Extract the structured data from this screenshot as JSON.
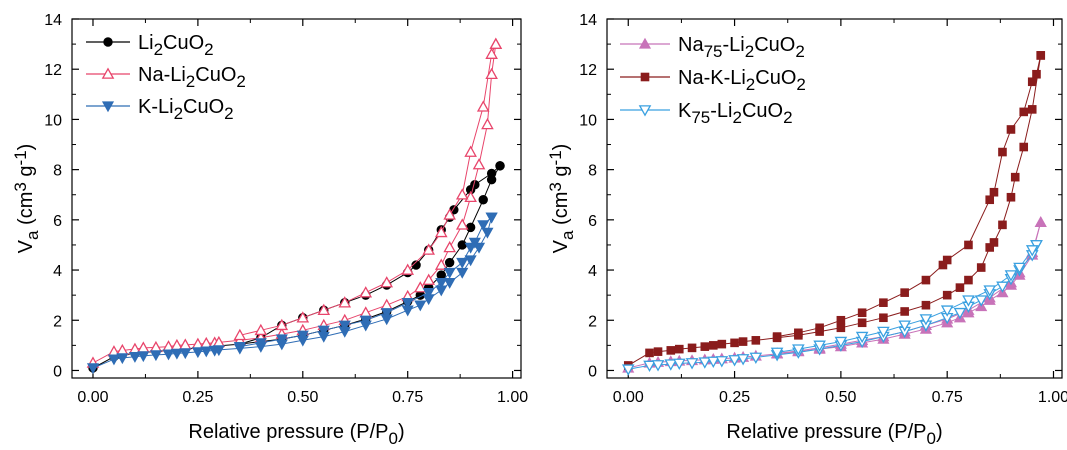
{
  "chart_data": [
    {
      "type": "line",
      "xlabel": "Relative pressure (P/P0)",
      "ylabel": "Va (cm3 g-1)",
      "xlim": [
        -0.05,
        1.02
      ],
      "ylim": [
        -0.3,
        14
      ],
      "xticks": [
        0.0,
        0.25,
        0.5,
        0.75,
        1.0
      ],
      "xtick_labels": [
        "0.00",
        "0.25",
        "0.50",
        "0.75",
        "1.00"
      ],
      "yticks": [
        0,
        2,
        4,
        6,
        8,
        10,
        12,
        14
      ],
      "ytick_labels": [
        "0",
        "2",
        "4",
        "6",
        "8",
        "10",
        "12",
        "14"
      ],
      "grid": false,
      "legend_position": "top-left",
      "series": [
        {
          "name": "Li2CuO2",
          "color": "#000000",
          "marker": "circle",
          "filled": true,
          "adsorption": {
            "x": [
              0.0,
              0.05,
              0.07,
              0.1,
              0.12,
              0.15,
              0.18,
              0.2,
              0.22,
              0.25,
              0.27,
              0.29,
              0.3,
              0.35,
              0.4,
              0.45,
              0.5,
              0.55,
              0.6,
              0.65,
              0.7,
              0.75,
              0.78,
              0.8,
              0.83,
              0.85,
              0.88,
              0.9,
              0.93,
              0.95,
              0.97
            ],
            "y": [
              0.1,
              0.55,
              0.62,
              0.68,
              0.72,
              0.75,
              0.8,
              0.82,
              0.86,
              0.9,
              0.93,
              0.96,
              0.98,
              1.05,
              1.15,
              1.25,
              1.4,
              1.6,
              1.8,
              2.05,
              2.35,
              2.75,
              3.0,
              3.3,
              3.8,
              4.3,
              5.0,
              5.7,
              6.8,
              7.6,
              8.15
            ]
          },
          "desorption": {
            "x": [
              0.97,
              0.95,
              0.91,
              0.9,
              0.86,
              0.85,
              0.83,
              0.8,
              0.77,
              0.75,
              0.7,
              0.65,
              0.6,
              0.55,
              0.5,
              0.45,
              0.4,
              0.35
            ],
            "y": [
              8.15,
              7.85,
              7.4,
              7.2,
              6.4,
              6.1,
              5.6,
              4.8,
              4.2,
              3.9,
              3.4,
              3.0,
              2.7,
              2.4,
              2.1,
              1.8,
              1.3,
              1.05
            ]
          }
        },
        {
          "name": "Na-Li2CuO2",
          "color": "#e8456b",
          "marker": "triangle-up",
          "filled": false,
          "adsorption": {
            "x": [
              0.0,
              0.05,
              0.07,
              0.1,
              0.12,
              0.15,
              0.18,
              0.2,
              0.22,
              0.25,
              0.27,
              0.29,
              0.3,
              0.35,
              0.4,
              0.45,
              0.5,
              0.55,
              0.6,
              0.65,
              0.7,
              0.75,
              0.78,
              0.8,
              0.83,
              0.85,
              0.88,
              0.9,
              0.92,
              0.94,
              0.95,
              0.96
            ],
            "y": [
              0.3,
              0.75,
              0.8,
              0.85,
              0.9,
              0.92,
              0.95,
              1.0,
              1.02,
              1.05,
              1.08,
              1.1,
              1.12,
              1.2,
              1.3,
              1.45,
              1.6,
              1.8,
              2.0,
              2.3,
              2.6,
              2.95,
              3.3,
              3.6,
              4.2,
              4.9,
              5.8,
              6.9,
              8.2,
              9.8,
              11.8,
              13.0
            ]
          },
          "desorption": {
            "x": [
              0.96,
              0.95,
              0.93,
              0.9,
              0.88,
              0.85,
              0.83,
              0.8,
              0.75,
              0.7,
              0.65,
              0.6,
              0.55,
              0.5,
              0.45,
              0.4,
              0.35
            ],
            "y": [
              13.0,
              12.6,
              10.5,
              8.7,
              7.0,
              6.2,
              5.5,
              4.8,
              4.0,
              3.5,
              3.1,
              2.7,
              2.4,
              2.1,
              1.8,
              1.6,
              1.4
            ]
          }
        },
        {
          "name": "K-Li2CuO2",
          "color": "#2f6db5",
          "marker": "triangle-down",
          "filled": true,
          "adsorption": {
            "x": [
              0.0,
              0.05,
              0.07,
              0.1,
              0.12,
              0.15,
              0.18,
              0.2,
              0.22,
              0.25,
              0.27,
              0.29,
              0.3,
              0.35,
              0.4,
              0.45,
              0.5,
              0.55,
              0.6,
              0.65,
              0.7,
              0.75,
              0.78,
              0.8,
              0.83,
              0.85,
              0.88,
              0.9,
              0.92,
              0.94,
              0.95
            ],
            "y": [
              0.1,
              0.45,
              0.5,
              0.55,
              0.58,
              0.62,
              0.65,
              0.68,
              0.7,
              0.74,
              0.77,
              0.8,
              0.82,
              0.88,
              0.95,
              1.05,
              1.2,
              1.35,
              1.55,
              1.8,
              2.05,
              2.4,
              2.6,
              2.85,
              3.2,
              3.5,
              3.9,
              4.4,
              4.9,
              5.5,
              6.1
            ]
          },
          "desorption": {
            "x": [
              0.95,
              0.93,
              0.91,
              0.9,
              0.88,
              0.85,
              0.83,
              0.8,
              0.75,
              0.7,
              0.65,
              0.6,
              0.55,
              0.5,
              0.45,
              0.4,
              0.35
            ],
            "y": [
              6.1,
              5.8,
              5.1,
              4.9,
              4.3,
              3.9,
              3.5,
              3.1,
              2.7,
              2.3,
              2.0,
              1.8,
              1.6,
              1.4,
              1.25,
              1.1,
              0.95
            ]
          }
        }
      ]
    },
    {
      "type": "line",
      "xlabel": "Relative pressure (P/P0)",
      "ylabel": "Va (cm3 g-1)",
      "xlim": [
        -0.05,
        1.02
      ],
      "ylim": [
        -0.3,
        14
      ],
      "xticks": [
        0.0,
        0.25,
        0.5,
        0.75,
        1.0
      ],
      "xtick_labels": [
        "0.00",
        "0.25",
        "0.50",
        "0.75",
        "1.00"
      ],
      "yticks": [
        0,
        2,
        4,
        6,
        8,
        10,
        12,
        14
      ],
      "ytick_labels": [
        "0",
        "2",
        "4",
        "6",
        "8",
        "10",
        "12",
        "14"
      ],
      "grid": false,
      "legend_position": "top-left",
      "series": [
        {
          "name": "Na75-Li2CuO2",
          "color": "#c873b9",
          "marker": "triangle-up",
          "filled": true,
          "adsorption": {
            "x": [
              0.0,
              0.05,
              0.07,
              0.1,
              0.12,
              0.15,
              0.18,
              0.2,
              0.22,
              0.25,
              0.27,
              0.3,
              0.35,
              0.4,
              0.45,
              0.5,
              0.55,
              0.6,
              0.65,
              0.7,
              0.75,
              0.78,
              0.8,
              0.83,
              0.85,
              0.88,
              0.9,
              0.92,
              0.95,
              0.97
            ],
            "y": [
              0.1,
              0.3,
              0.33,
              0.36,
              0.38,
              0.4,
              0.43,
              0.45,
              0.47,
              0.5,
              0.53,
              0.58,
              0.66,
              0.75,
              0.85,
              0.95,
              1.1,
              1.25,
              1.45,
              1.65,
              1.9,
              2.1,
              2.3,
              2.55,
              2.8,
              3.1,
              3.4,
              3.8,
              4.6,
              5.9
            ]
          },
          "desorption": {
            "x": [
              0.97,
              0.95,
              0.92,
              0.9,
              0.85,
              0.8,
              0.75,
              0.7,
              0.65,
              0.6,
              0.55,
              0.5,
              0.45,
              0.4,
              0.35
            ],
            "y": [
              5.9,
              4.7,
              3.9,
              3.5,
              2.9,
              2.4,
              2.05,
              1.8,
              1.55,
              1.35,
              1.2,
              1.05,
              0.9,
              0.78,
              0.68
            ]
          }
        },
        {
          "name": "Na-K-Li2CuO2",
          "color": "#8a1c1c",
          "marker": "square",
          "filled": true,
          "adsorption": {
            "x": [
              0.0,
              0.05,
              0.07,
              0.1,
              0.12,
              0.15,
              0.18,
              0.2,
              0.22,
              0.25,
              0.27,
              0.3,
              0.35,
              0.4,
              0.45,
              0.5,
              0.55,
              0.6,
              0.65,
              0.7,
              0.75,
              0.78,
              0.8,
              0.83,
              0.85,
              0.86,
              0.88,
              0.9,
              0.91,
              0.93,
              0.95,
              0.97
            ],
            "y": [
              0.2,
              0.7,
              0.75,
              0.8,
              0.85,
              0.9,
              0.95,
              1.0,
              1.05,
              1.1,
              1.15,
              1.2,
              1.3,
              1.4,
              1.55,
              1.7,
              1.9,
              2.1,
              2.35,
              2.6,
              3.0,
              3.3,
              3.6,
              4.1,
              4.9,
              5.1,
              5.8,
              6.9,
              7.7,
              8.9,
              10.4,
              12.55
            ]
          },
          "desorption": {
            "x": [
              0.97,
              0.96,
              0.95,
              0.93,
              0.9,
              0.88,
              0.86,
              0.85,
              0.8,
              0.75,
              0.74,
              0.7,
              0.65,
              0.6,
              0.55,
              0.5,
              0.45,
              0.4,
              0.35
            ],
            "y": [
              12.55,
              11.8,
              11.5,
              10.3,
              9.6,
              8.7,
              7.1,
              6.8,
              5.0,
              4.4,
              4.2,
              3.6,
              3.1,
              2.7,
              2.3,
              2.0,
              1.7,
              1.5,
              1.35
            ]
          }
        },
        {
          "name": "K75-Li2CuO2",
          "color": "#3aa0e0",
          "marker": "triangle-down",
          "filled": false,
          "adsorption": {
            "x": [
              0.0,
              0.05,
              0.07,
              0.1,
              0.12,
              0.15,
              0.18,
              0.2,
              0.22,
              0.25,
              0.27,
              0.3,
              0.35,
              0.4,
              0.45,
              0.5,
              0.55,
              0.6,
              0.65,
              0.7,
              0.75,
              0.78,
              0.8,
              0.83,
              0.85,
              0.88,
              0.9,
              0.92,
              0.95,
              0.96
            ],
            "y": [
              0.05,
              0.2,
              0.22,
              0.25,
              0.28,
              0.3,
              0.33,
              0.36,
              0.38,
              0.42,
              0.46,
              0.52,
              0.62,
              0.72,
              0.85,
              1.0,
              1.15,
              1.35,
              1.55,
              1.8,
              2.1,
              2.3,
              2.55,
              2.8,
              3.05,
              3.35,
              3.65,
              4.0,
              4.6,
              5.0
            ]
          },
          "desorption": {
            "x": [
              0.96,
              0.95,
              0.92,
              0.9,
              0.85,
              0.8,
              0.75,
              0.7,
              0.65,
              0.6,
              0.55,
              0.5,
              0.45,
              0.4,
              0.35
            ],
            "y": [
              5.0,
              4.8,
              4.1,
              3.8,
              3.2,
              2.8,
              2.4,
              2.05,
              1.8,
              1.55,
              1.35,
              1.15,
              1.0,
              0.85,
              0.72
            ]
          }
        }
      ]
    }
  ]
}
